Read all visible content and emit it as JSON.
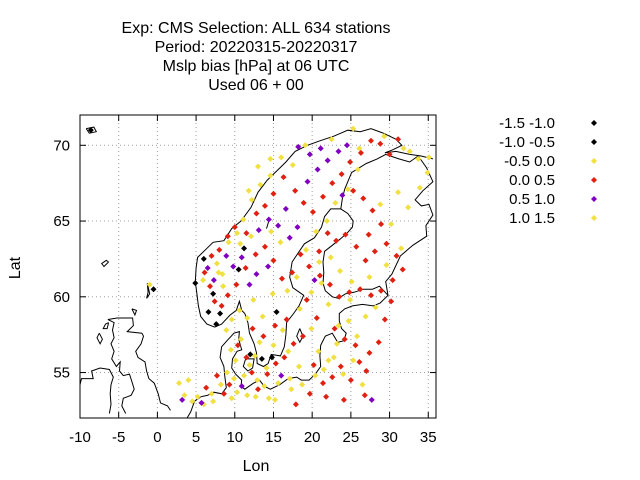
{
  "chart_data": {
    "type": "scatter",
    "title_lines": [
      "Exp: CMS   Selection: ALL    634 stations",
      "Period: 20220315-20220317",
      "Mslp bias [hPa] at  06 UTC",
      "Used  06 + 00"
    ],
    "xlabel": "Lon",
    "ylabel": "Lat",
    "xlim": [
      -10,
      36
    ],
    "ylim": [
      52,
      72
    ],
    "xticks": [
      -10,
      -5,
      0,
      5,
      10,
      15,
      20,
      25,
      30,
      35
    ],
    "yticks": [
      55,
      60,
      65,
      70
    ],
    "grid": true,
    "legend_position": "right",
    "colors": {
      "frame": "#000000",
      "grid": "#a0a0a0",
      "coast": "#000000"
    },
    "series": [
      {
        "name": "-1.5 -1.0",
        "color": "#000000",
        "points": [
          [
            -8.6,
            71.0
          ],
          [
            -0.5,
            60.5
          ],
          [
            4.9,
            60.9
          ],
          [
            7.2,
            60.2
          ],
          [
            10.5,
            61.8
          ],
          [
            11.2,
            63.2
          ],
          [
            12.0,
            56.2
          ],
          [
            14.8,
            56.0
          ],
          [
            7.6,
            58.2
          ]
        ]
      },
      {
        "name": "-1.0 -0.5",
        "color": "#000000",
        "points": [
          [
            6.0,
            62.5
          ],
          [
            8.1,
            58.9
          ],
          [
            13.5,
            55.9
          ],
          [
            15.4,
            59.0
          ],
          [
            6.6,
            59.0
          ]
        ]
      },
      {
        "name": "-0.5 0.0",
        "color": "#f0e040",
        "points": [
          [
            -1.0,
            60.8
          ],
          [
            3.5,
            53.5
          ],
          [
            4.0,
            54.5
          ],
          [
            5.2,
            53.4
          ],
          [
            6.0,
            52.9
          ],
          [
            7.0,
            53.6
          ],
          [
            8.2,
            54.2
          ],
          [
            9.0,
            55.0
          ],
          [
            9.5,
            56.5
          ],
          [
            10.1,
            55.8
          ],
          [
            10.8,
            57.2
          ],
          [
            11.2,
            54.8
          ],
          [
            11.9,
            55.5
          ],
          [
            12.6,
            56.1
          ],
          [
            13.2,
            57.0
          ],
          [
            14.1,
            55.3
          ],
          [
            15.0,
            56.8
          ],
          [
            16.2,
            57.8
          ],
          [
            17.1,
            54.6
          ],
          [
            18.3,
            55.4
          ],
          [
            5.9,
            61.1
          ],
          [
            7.7,
            62.2
          ],
          [
            8.4,
            61.5
          ],
          [
            12.4,
            59.8
          ],
          [
            13.6,
            58.7
          ],
          [
            14.9,
            60.2
          ],
          [
            16.8,
            60.4
          ],
          [
            18.4,
            59.2
          ],
          [
            19.9,
            57.9
          ],
          [
            20.8,
            56.4
          ],
          [
            22.1,
            59.5
          ],
          [
            23.4,
            58.1
          ],
          [
            24.9,
            59.8
          ],
          [
            25.8,
            57.4
          ],
          [
            26.9,
            58.7
          ],
          [
            28.2,
            59.3
          ],
          [
            21.5,
            55.2
          ],
          [
            22.8,
            56.0
          ],
          [
            24.0,
            54.9
          ],
          [
            25.3,
            55.8
          ],
          [
            26.5,
            54.2
          ],
          [
            19.2,
            63.1
          ],
          [
            20.5,
            64.3
          ],
          [
            21.9,
            65.0
          ],
          [
            23.0,
            66.2
          ],
          [
            24.6,
            67.1
          ],
          [
            25.9,
            68.4
          ],
          [
            17.5,
            68.7
          ],
          [
            16.0,
            69.2
          ],
          [
            14.6,
            68.0
          ],
          [
            13.3,
            67.4
          ],
          [
            12.2,
            66.4
          ],
          [
            11.1,
            65.1
          ],
          [
            10.3,
            64.2
          ],
          [
            9.2,
            63.6
          ],
          [
            26.1,
            69.8
          ],
          [
            29.3,
            70.6
          ],
          [
            31.8,
            69.8
          ],
          [
            33.7,
            69.1
          ],
          [
            34.9,
            68.2
          ],
          [
            28.8,
            66.1
          ],
          [
            30.2,
            64.8
          ],
          [
            31.5,
            63.2
          ],
          [
            29.6,
            62.1
          ],
          [
            27.4,
            61.3
          ],
          [
            25.1,
            61.0
          ],
          [
            23.6,
            61.7
          ],
          [
            22.4,
            62.6
          ],
          [
            21.2,
            60.9
          ],
          [
            9.6,
            58.5
          ],
          [
            8.9,
            57.8
          ],
          [
            10.6,
            59.1
          ],
          [
            11.6,
            58.6
          ],
          [
            12.9,
            54.5
          ],
          [
            13.8,
            54.1
          ],
          [
            15.6,
            54.3
          ],
          [
            16.9,
            56.4
          ],
          [
            10.3,
            53.7
          ],
          [
            11.6,
            53.5
          ],
          [
            14.4,
            53.3
          ],
          [
            9.9,
            54.6
          ]
        ]
      },
      {
        "name": "0.0 0.5",
        "color": "#e02010",
        "points": [
          [
            6.3,
            54.0
          ],
          [
            7.7,
            54.8
          ],
          [
            8.6,
            53.6
          ],
          [
            9.3,
            54.2
          ],
          [
            10.4,
            56.8
          ],
          [
            11.5,
            56.0
          ],
          [
            12.2,
            55.0
          ],
          [
            13.0,
            53.9
          ],
          [
            14.2,
            54.9
          ],
          [
            15.3,
            55.6
          ],
          [
            16.4,
            56.0
          ],
          [
            17.6,
            56.9
          ],
          [
            18.8,
            57.4
          ],
          [
            20.2,
            55.5
          ],
          [
            21.4,
            54.3
          ],
          [
            22.6,
            54.7
          ],
          [
            23.7,
            55.4
          ],
          [
            25.0,
            54.5
          ],
          [
            26.1,
            55.7
          ],
          [
            27.4,
            56.3
          ],
          [
            28.6,
            57.0
          ],
          [
            29.4,
            58.5
          ],
          [
            30.2,
            59.7
          ],
          [
            28.9,
            60.4
          ],
          [
            27.6,
            60.1
          ],
          [
            26.2,
            60.5
          ],
          [
            24.8,
            60.3
          ],
          [
            23.5,
            60.0
          ],
          [
            22.3,
            60.8
          ],
          [
            21.0,
            61.4
          ],
          [
            19.6,
            62.0
          ],
          [
            18.5,
            62.8
          ],
          [
            17.4,
            61.6
          ],
          [
            16.1,
            61.2
          ],
          [
            15.0,
            62.4
          ],
          [
            13.9,
            63.3
          ],
          [
            12.7,
            62.8
          ],
          [
            11.4,
            61.9
          ],
          [
            10.2,
            60.8
          ],
          [
            9.1,
            60.1
          ],
          [
            8.3,
            59.4
          ],
          [
            7.4,
            59.7
          ],
          [
            6.8,
            60.7
          ],
          [
            6.1,
            61.6
          ],
          [
            7.0,
            62.7
          ],
          [
            8.0,
            63.1
          ],
          [
            9.1,
            64.0
          ],
          [
            10.0,
            64.6
          ],
          [
            11.5,
            64.2
          ],
          [
            12.8,
            65.5
          ],
          [
            13.9,
            66.0
          ],
          [
            15.0,
            66.8
          ],
          [
            16.3,
            67.9
          ],
          [
            17.8,
            67.0
          ],
          [
            18.9,
            66.2
          ],
          [
            20.1,
            65.6
          ],
          [
            21.4,
            66.6
          ],
          [
            22.6,
            67.5
          ],
          [
            23.8,
            68.1
          ],
          [
            24.9,
            68.9
          ],
          [
            26.3,
            69.5
          ],
          [
            27.6,
            70.3
          ],
          [
            28.8,
            70.1
          ],
          [
            30.0,
            69.4
          ],
          [
            31.1,
            70.4
          ],
          [
            25.3,
            67.0
          ],
          [
            26.6,
            66.5
          ],
          [
            27.8,
            65.7
          ],
          [
            28.9,
            64.8
          ],
          [
            29.6,
            63.5
          ],
          [
            28.1,
            63.0
          ],
          [
            26.9,
            62.4
          ],
          [
            25.7,
            63.3
          ],
          [
            24.3,
            64.1
          ],
          [
            23.1,
            63.7
          ],
          [
            22.0,
            64.2
          ],
          [
            20.9,
            63.0
          ],
          [
            27.3,
            64.1
          ],
          [
            30.9,
            62.7
          ],
          [
            31.7,
            61.8
          ],
          [
            30.4,
            61.1
          ],
          [
            16.7,
            58.5
          ],
          [
            15.2,
            58.1
          ],
          [
            13.7,
            57.4
          ],
          [
            12.3,
            57.9
          ],
          [
            19.3,
            59.8
          ],
          [
            20.6,
            58.6
          ],
          [
            24.2,
            57.2
          ],
          [
            22.9,
            57.9
          ],
          [
            25.6,
            56.8
          ],
          [
            27.0,
            55.1
          ],
          [
            21.8,
            53.4
          ],
          [
            24.1,
            53.2
          ],
          [
            26.8,
            53.5
          ],
          [
            19.7,
            53.6
          ],
          [
            17.9,
            52.9
          ]
        ]
      },
      {
        "name": "0.5 1.0",
        "color": "#8000c0",
        "points": [
          [
            3.2,
            53.2
          ],
          [
            5.7,
            53.0
          ],
          [
            10.9,
            54.1
          ],
          [
            16.0,
            54.8
          ],
          [
            27.7,
            53.2
          ],
          [
            6.5,
            61.9
          ],
          [
            7.3,
            61.1
          ],
          [
            8.9,
            62.7
          ],
          [
            9.8,
            62.0
          ],
          [
            10.9,
            62.6
          ],
          [
            11.9,
            60.8
          ],
          [
            12.8,
            61.5
          ],
          [
            14.3,
            62.0
          ],
          [
            13.1,
            64.4
          ],
          [
            14.4,
            65.1
          ],
          [
            15.6,
            64.7
          ],
          [
            16.6,
            65.8
          ],
          [
            17.1,
            63.9
          ],
          [
            18.1,
            64.6
          ],
          [
            19.4,
            67.6
          ],
          [
            20.7,
            68.4
          ],
          [
            22.0,
            69.0
          ],
          [
            23.4,
            69.6
          ],
          [
            24.5,
            70.0
          ],
          [
            21.1,
            69.8
          ],
          [
            19.7,
            69.4
          ],
          [
            18.2,
            69.9
          ],
          [
            23.9,
            66.7
          ],
          [
            20.3,
            61.1
          ]
        ]
      },
      {
        "name": "1.0 1.5",
        "color": "#f0e040",
        "points": [
          [
            2.8,
            54.3
          ],
          [
            4.5,
            53.1
          ],
          [
            7.2,
            53.1
          ],
          [
            9.6,
            53.3
          ],
          [
            12.7,
            53.4
          ],
          [
            15.2,
            53.2
          ],
          [
            17.3,
            53.9
          ],
          [
            18.7,
            54.2
          ],
          [
            20.4,
            54.8
          ],
          [
            22.1,
            55.8
          ],
          [
            23.2,
            56.9
          ],
          [
            24.7,
            58.4
          ],
          [
            19.9,
            60.3
          ],
          [
            20.9,
            62.3
          ],
          [
            18.0,
            61.3
          ],
          [
            15.9,
            63.6
          ],
          [
            14.7,
            64.3
          ],
          [
            12.1,
            64.0
          ],
          [
            10.7,
            63.5
          ],
          [
            8.5,
            60.7
          ],
          [
            7.9,
            61.6
          ],
          [
            11.8,
            67.0
          ],
          [
            13.0,
            68.6
          ],
          [
            14.6,
            69.1
          ],
          [
            19.1,
            70.0
          ],
          [
            22.5,
            70.4
          ],
          [
            25.3,
            71.1
          ],
          [
            32.6,
            69.6
          ],
          [
            35.1,
            69.2
          ],
          [
            33.9,
            67.2
          ],
          [
            32.4,
            65.9
          ],
          [
            31.1,
            66.9
          ]
        ]
      }
    ]
  }
}
